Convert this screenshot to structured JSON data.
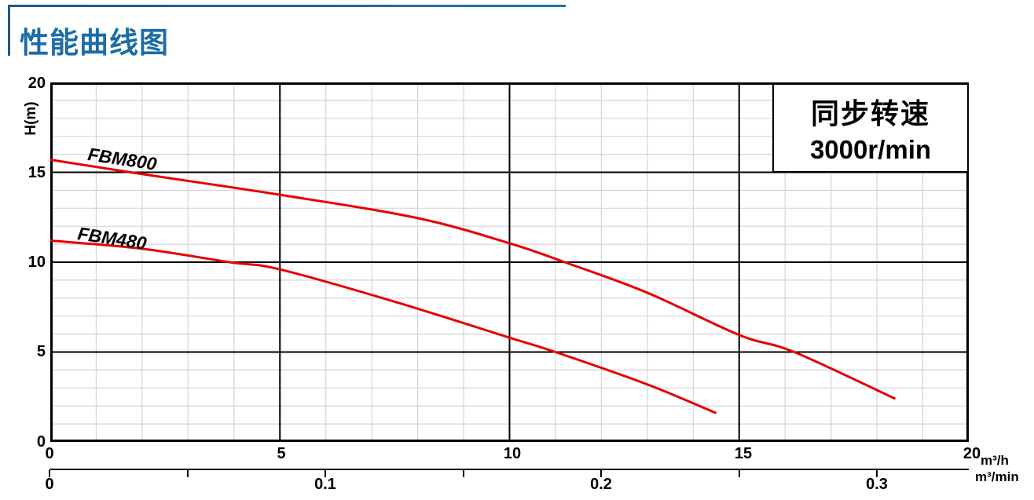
{
  "header": {
    "title": "性能曲线图"
  },
  "legend": {
    "line1": "同步转速",
    "line2": "3000r/min"
  },
  "chart_data": {
    "type": "line",
    "title": "性能曲线图",
    "annotation": "同步转速 3000r/min",
    "ylabel": "H(m)",
    "xlabel_primary": "m³/h",
    "xlabel_secondary": "m³/min",
    "x_axis": {
      "min": 0,
      "max": 20,
      "major_step": 5,
      "minor_step": 1,
      "unit": "m³/h",
      "tick_labels": [
        "0",
        "5",
        "10",
        "15",
        "20"
      ]
    },
    "x2_axis": {
      "min": 0,
      "max": 0.333,
      "unit": "m³/min",
      "tick_values": [
        0,
        0.05,
        0.1,
        0.15,
        0.2,
        0.25,
        0.3
      ],
      "tick_labels": [
        "0",
        "0.1",
        "0.2",
        "0.3"
      ]
    },
    "y_axis": {
      "min": 0,
      "max": 20,
      "major_step": 5,
      "minor_step": 1,
      "unit": "m",
      "tick_labels": [
        "20",
        "15",
        "10",
        "5",
        "0"
      ]
    },
    "grid": true,
    "legend_position": "top-right",
    "series": [
      {
        "name": "FBM800",
        "color": "#e60000",
        "points": [
          [
            0,
            15.7
          ],
          [
            2,
            14.9
          ],
          [
            5,
            13.75
          ],
          [
            8,
            12.45
          ],
          [
            10,
            11.05
          ],
          [
            11.2,
            10
          ],
          [
            13,
            8.3
          ],
          [
            15,
            5.95
          ],
          [
            16.2,
            5
          ],
          [
            18.4,
            2.4
          ]
        ]
      },
      {
        "name": "FBM480",
        "color": "#e60000",
        "points": [
          [
            0,
            11.2
          ],
          [
            2,
            10.75
          ],
          [
            3.9,
            10
          ],
          [
            5,
            9.6
          ],
          [
            7.5,
            7.8
          ],
          [
            10,
            5.8
          ],
          [
            11,
            5
          ],
          [
            13,
            3.2
          ],
          [
            14.5,
            1.6
          ]
        ]
      }
    ]
  },
  "colors": {
    "title_blue": "#1b6da6",
    "accent_line": "#1f6fa5",
    "curve_red": "#e60000",
    "grid_minor": "#d4d4d4",
    "grid_major": "#000000"
  }
}
